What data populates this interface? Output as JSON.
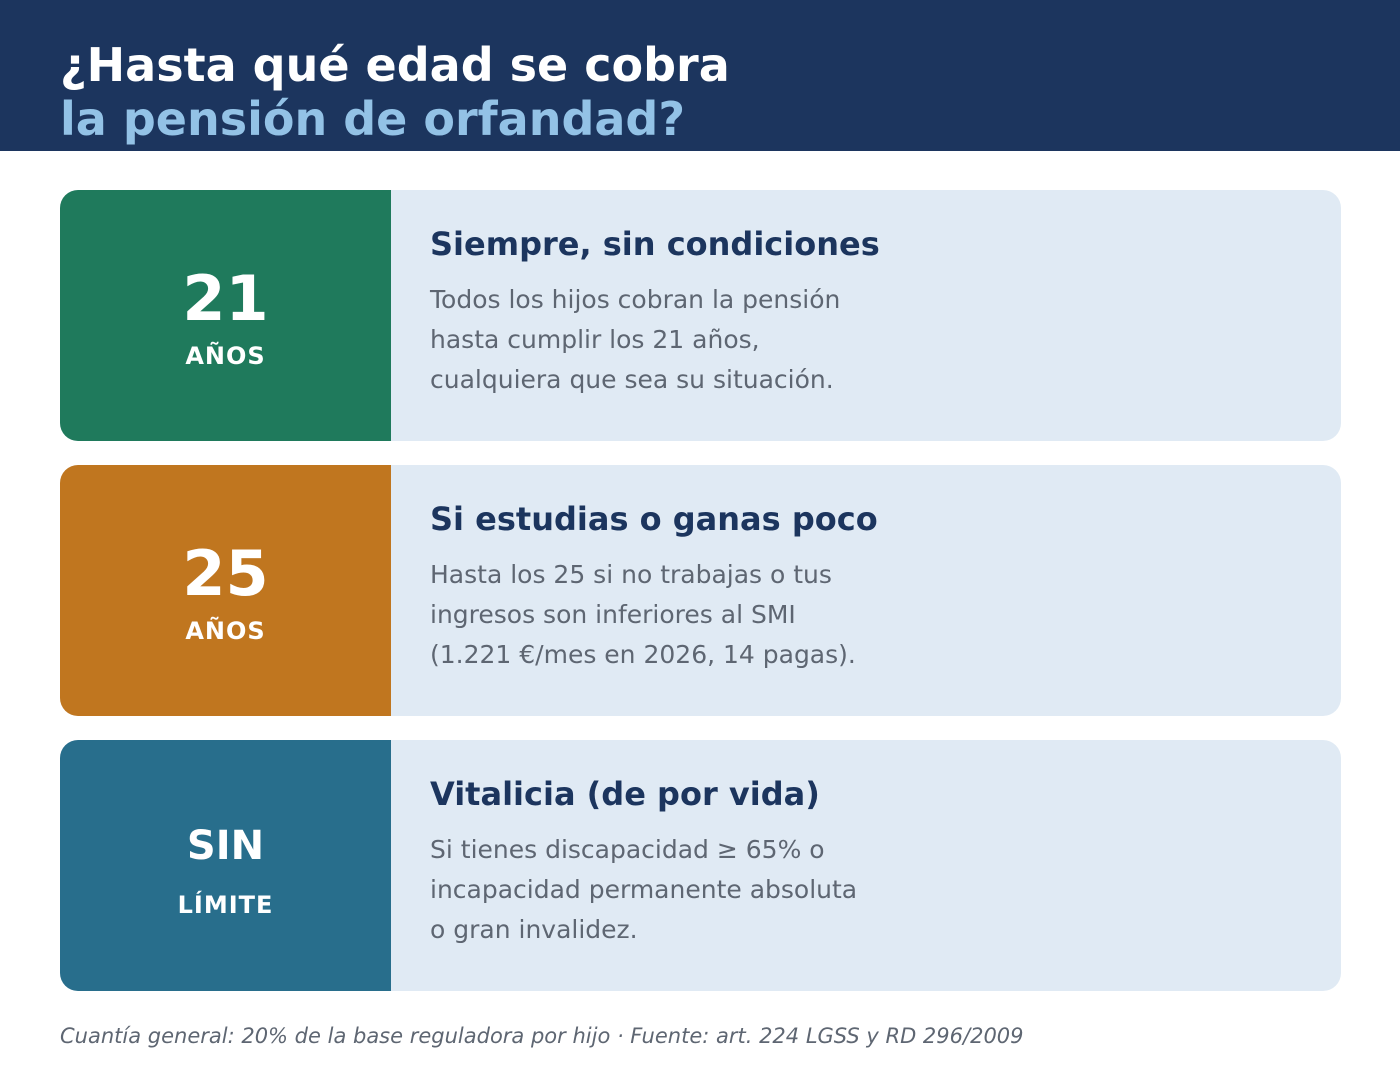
{
  "header": {
    "title_line1": "¿Hasta qué edad se cobra",
    "title_line2": "la pensión de orfandad?"
  },
  "cards": [
    {
      "value": "21",
      "unit": "AÑOS",
      "color": "#1f7a5c",
      "title": "Siempre, sin condiciones",
      "lines": [
        "Todos los hijos cobran la pensión",
        "hasta cumplir los 21 años,",
        "cualquiera que sea su situación."
      ]
    },
    {
      "value": "25",
      "unit": "AÑOS",
      "color": "#c0761f",
      "title": "Si estudias o ganas poco",
      "lines": [
        "Hasta los 25 si no trabajas o tus",
        "ingresos son inferiores al SMI",
        "(1.221 €/mes en 2026, 14 pagas)."
      ]
    },
    {
      "value": "SIN",
      "unit": "LÍMITE",
      "color": "#286e8c",
      "title": "Vitalicia (de por vida)",
      "lines": [
        "Si tienes discapacidad ≥ 65% o",
        "incapacidad permanente absoluta",
        "o gran invalidez."
      ]
    }
  ],
  "footer": {
    "text": "Cuantía general: 20% de la base reguladora por hijo  ·  Fuente: art. 224 LGSS y RD 296/2009"
  },
  "colors": {
    "header_bg": "#1c355e",
    "title_accent": "#93c2e6",
    "card_bg": "#e0eaf4",
    "text_muted": "#5e6672"
  }
}
